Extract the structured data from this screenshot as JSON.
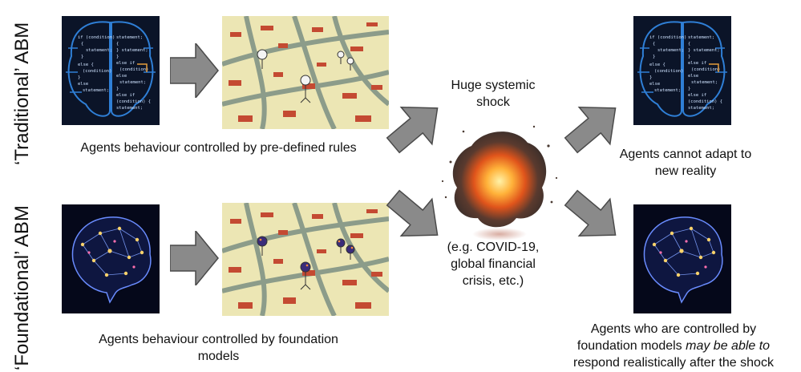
{
  "row_labels": {
    "traditional": "‘Traditional’ ABM",
    "foundational": "‘Foundational’ ABM"
  },
  "captions": {
    "traditional": "Agents behaviour controlled by pre-defined rules",
    "foundational": "Agents behaviour controlled by foundation models",
    "shock_title": "Huge systemic shock",
    "shock_examples": "(e.g. COVID-19, global financial crisis, etc.)",
    "traditional_outcome": "Agents cannot adapt to new reality",
    "foundational_outcome_1": "Agents who are controlled by",
    "foundational_outcome_2a": "foundation models ",
    "foundational_outcome_2b": "may be able to",
    "foundational_outcome_3": "respond realistically after the shock"
  },
  "code_text": {
    "left_col": [
      "if (condition)",
      "{",
      "statement;",
      "}",
      "else {",
      "(condition)",
      "}",
      "else",
      "statement;"
    ],
    "right_col": [
      "statement;",
      "{",
      "} statement;",
      "}",
      "else if",
      "(condition)",
      "else",
      "statement;",
      "}",
      "else if",
      "(condition) {",
      "statement;"
    ]
  },
  "colors": {
    "arrow_fill": "#8a8a8a",
    "arrow_stroke": "#4a4a4a",
    "code_bg": "#0b1428",
    "brain_bg": "#05081a",
    "map_bg": "#ece6b4",
    "map_roads": "#8c9c8a",
    "map_buildings": "#c44a32"
  }
}
